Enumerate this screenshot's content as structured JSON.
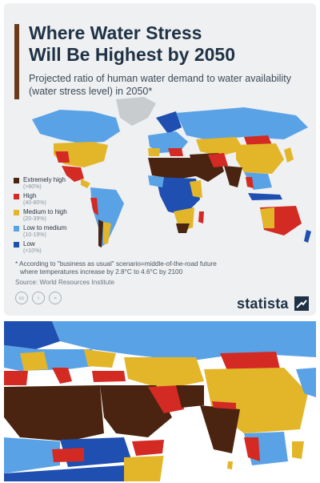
{
  "title_line1": "Where Water Stress",
  "title_line2": "Will Be Highest by 2050",
  "subtitle": "Projected ratio of human water demand to water availability (water stress level) in 2050*",
  "colors": {
    "extremely_high": "#4a2410",
    "high": "#d42a24",
    "medium_to_high": "#e3b62a",
    "low_to_medium": "#5aa2e6",
    "low": "#1f4fb0",
    "no_data": "#c9ccce"
  },
  "legend": [
    {
      "label": "Extremely high",
      "range": "(>80%)"
    },
    {
      "label": "High",
      "range": "(40-80%)"
    },
    {
      "label": "Medium to high",
      "range": "(20-39%)"
    },
    {
      "label": "Low to medium",
      "range": "(10-19%)"
    },
    {
      "label": "Low",
      "range": "(<10%)"
    }
  ],
  "footnote_line1": "* According to \"business as usual\" scenario=middle-of-the-road future",
  "footnote_line2": "where temperatures increase by 2.8°C to 4.6°C by 2100",
  "source": "Source: World Resources Institute",
  "license_icons": [
    "cc-icon",
    "person-icon",
    "equals-icon"
  ],
  "license_text": [
    "cc",
    "i",
    "="
  ],
  "brand": "statista"
}
